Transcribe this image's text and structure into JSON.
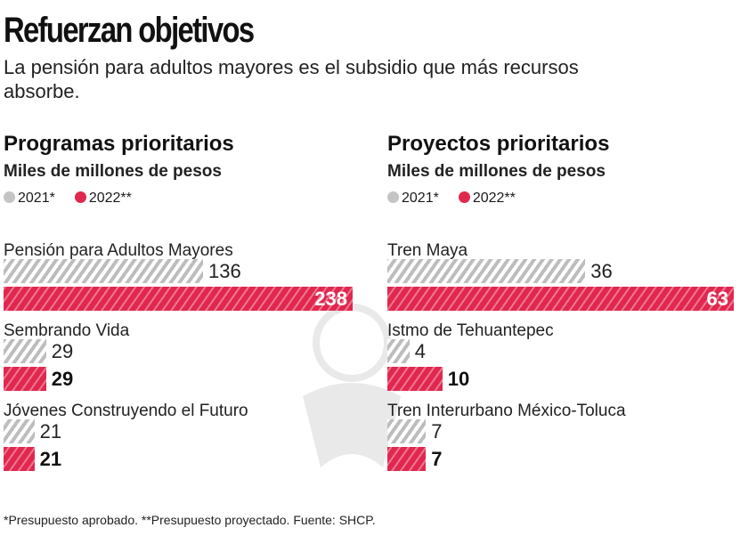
{
  "title": "Refuerzan objetivos",
  "subtitle": "La pensión para adultos mayores es el subsidio que más recursos absorbe.",
  "footnote": "*Presupuesto aprobado. **Presupuesto proyectado. Fuente: SHCP.",
  "colors": {
    "2021": "#c4c4c4",
    "2022": "#e0284f"
  },
  "chart_data": [
    {
      "type": "bar",
      "title": "Programas prioritarios",
      "ylabel": "Miles de millones de pesos",
      "legend": [
        "2021*",
        "2022**"
      ],
      "categories": [
        "Pensión para Adultos Mayores",
        "Sembrando Vida",
        "Jóvenes Construyendo el Futuro"
      ],
      "series": [
        {
          "name": "2021*",
          "values": [
            136,
            29,
            21
          ]
        },
        {
          "name": "2022**",
          "values": [
            238,
            29,
            21
          ]
        }
      ],
      "xlim": [
        0,
        238
      ]
    },
    {
      "type": "bar",
      "title": "Proyectos prioritarios",
      "ylabel": "Miles de millones de pesos",
      "legend": [
        "2021*",
        "2022**"
      ],
      "categories": [
        "Tren Maya",
        "Istmo de Tehuantepec",
        "Tren Interurbano México-Toluca"
      ],
      "series": [
        {
          "name": "2021*",
          "values": [
            36,
            4,
            7
          ]
        },
        {
          "name": "2022**",
          "values": [
            63,
            10,
            7
          ]
        }
      ],
      "xlim": [
        0,
        63
      ]
    }
  ]
}
